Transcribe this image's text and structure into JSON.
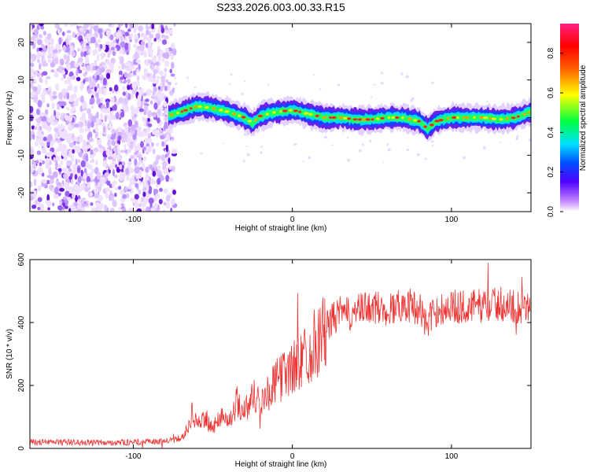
{
  "title": "S233.2026.003.00.33.R15",
  "chart_data": [
    {
      "type": "heatmap",
      "xlabel": "Height of straight line (km)",
      "ylabel": "Frequency (Hz)",
      "xlim": [
        -165,
        150
      ],
      "ylim": [
        -25,
        25
      ],
      "xticks": [
        -100,
        0,
        100
      ],
      "yticks": [
        -20,
        -10,
        0,
        10,
        20
      ],
      "colorbar": {
        "label": "Normalized spectral amplitude",
        "ticks": [
          0.0,
          0.2,
          0.4,
          0.6,
          0.8
        ],
        "range": [
          0,
          0.95
        ]
      },
      "noise_region_x": [
        -165,
        -77
      ],
      "signal_trace": {
        "x": [
          -78,
          -70,
          -60,
          -50,
          -40,
          -30,
          -25,
          -20,
          -10,
          0,
          10,
          20,
          30,
          40,
          50,
          60,
          70,
          80,
          85,
          90,
          100,
          110,
          120,
          130,
          140,
          150
        ],
        "y": [
          0.5,
          1.5,
          3.0,
          2.5,
          1.5,
          0.0,
          -1.5,
          0.5,
          1.5,
          2.0,
          1.0,
          0.0,
          0.0,
          -0.5,
          -0.5,
          0.0,
          0.0,
          -1.0,
          -3.0,
          -1.0,
          0.0,
          0.0,
          0.0,
          -0.5,
          0.0,
          1.5
        ]
      }
    },
    {
      "type": "line",
      "xlabel": "Height of straight line (km)",
      "ylabel": "SNR (10 * v/v)",
      "xlim": [
        -165,
        150
      ],
      "ylim": [
        0,
        600
      ],
      "xticks": [
        -100,
        0,
        100
      ],
      "yticks": [
        0,
        200,
        400,
        600
      ],
      "color": "#ee3333",
      "series": [
        {
          "x": [
            -165,
            -150,
            -120,
            -90,
            -75,
            -68,
            -63,
            -58,
            -55,
            -50,
            -45,
            -40,
            -35,
            -30,
            -25,
            -20,
            -15,
            -10,
            -5,
            0,
            5,
            10,
            15,
            20,
            25,
            30,
            35,
            40,
            50,
            60,
            70,
            80,
            85,
            90,
            100,
            110,
            120,
            130,
            140,
            150
          ],
          "y": [
            20,
            20,
            18,
            20,
            25,
            40,
            110,
            70,
            100,
            60,
            110,
            80,
            150,
            120,
            170,
            150,
            180,
            210,
            240,
            250,
            280,
            310,
            340,
            370,
            410,
            430,
            425,
            435,
            450,
            440,
            460,
            445,
            390,
            440,
            450,
            450,
            455,
            460,
            450,
            455
          ]
        }
      ]
    }
  ],
  "colors": {
    "line": "#ee3333",
    "noise": "#7a2be0"
  }
}
